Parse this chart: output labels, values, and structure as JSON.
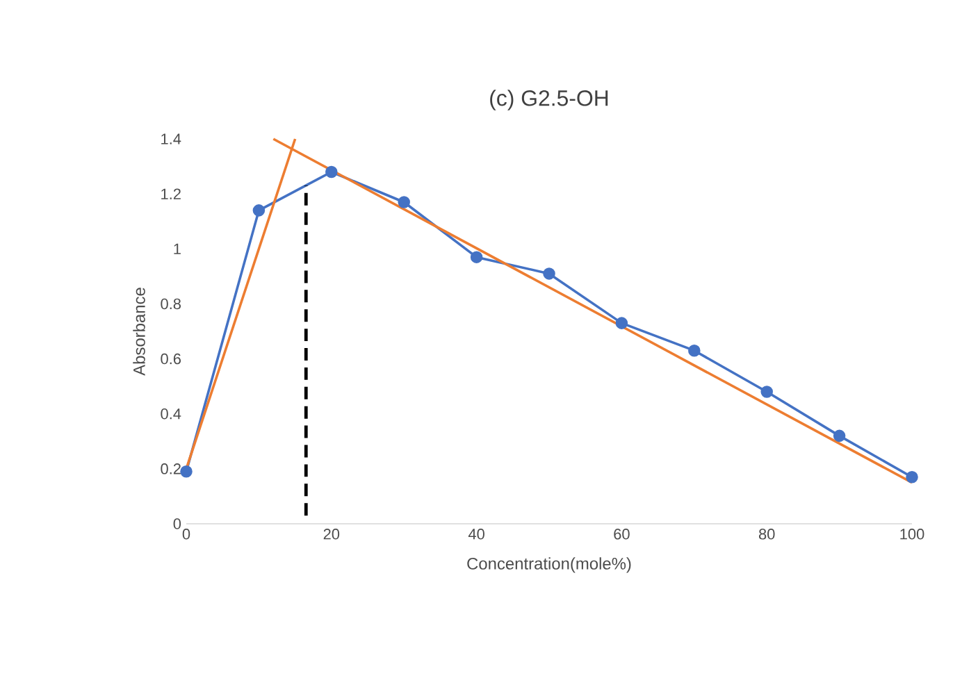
{
  "chart_data": {
    "type": "line",
    "title": "(c) G2.5-OH",
    "xlabel": "Concentration(mole%)",
    "ylabel": "Absorbance",
    "xlim": [
      0,
      100
    ],
    "ylim": [
      0,
      1.4
    ],
    "xticks": [
      0,
      20,
      40,
      60,
      80,
      100
    ],
    "yticks": [
      0,
      0.2,
      0.4,
      0.6,
      0.8,
      1,
      1.2,
      1.4
    ],
    "grid": false,
    "series": [
      {
        "type": "line",
        "color": "#4472c4",
        "marker": "circle",
        "x": [
          0,
          10,
          20,
          30,
          40,
          50,
          60,
          70,
          80,
          90,
          100
        ],
        "values": [
          0.19,
          1.14,
          1.28,
          1.17,
          0.97,
          0.91,
          0.73,
          0.63,
          0.48,
          0.32,
          0.17
        ]
      },
      {
        "type": "line",
        "color": "#ed7d31",
        "marker": "none",
        "x": [
          0,
          15
        ],
        "values": [
          0.2,
          1.4
        ]
      },
      {
        "type": "line",
        "color": "#ed7d31",
        "marker": "none",
        "x": [
          12,
          100
        ],
        "values": [
          1.4,
          0.15
        ]
      },
      {
        "type": "line",
        "color": "#000000",
        "marker": "none",
        "line_style": "dashed",
        "x": [
          16.5,
          16.5
        ],
        "values": [
          0.03,
          1.23
        ]
      }
    ]
  }
}
